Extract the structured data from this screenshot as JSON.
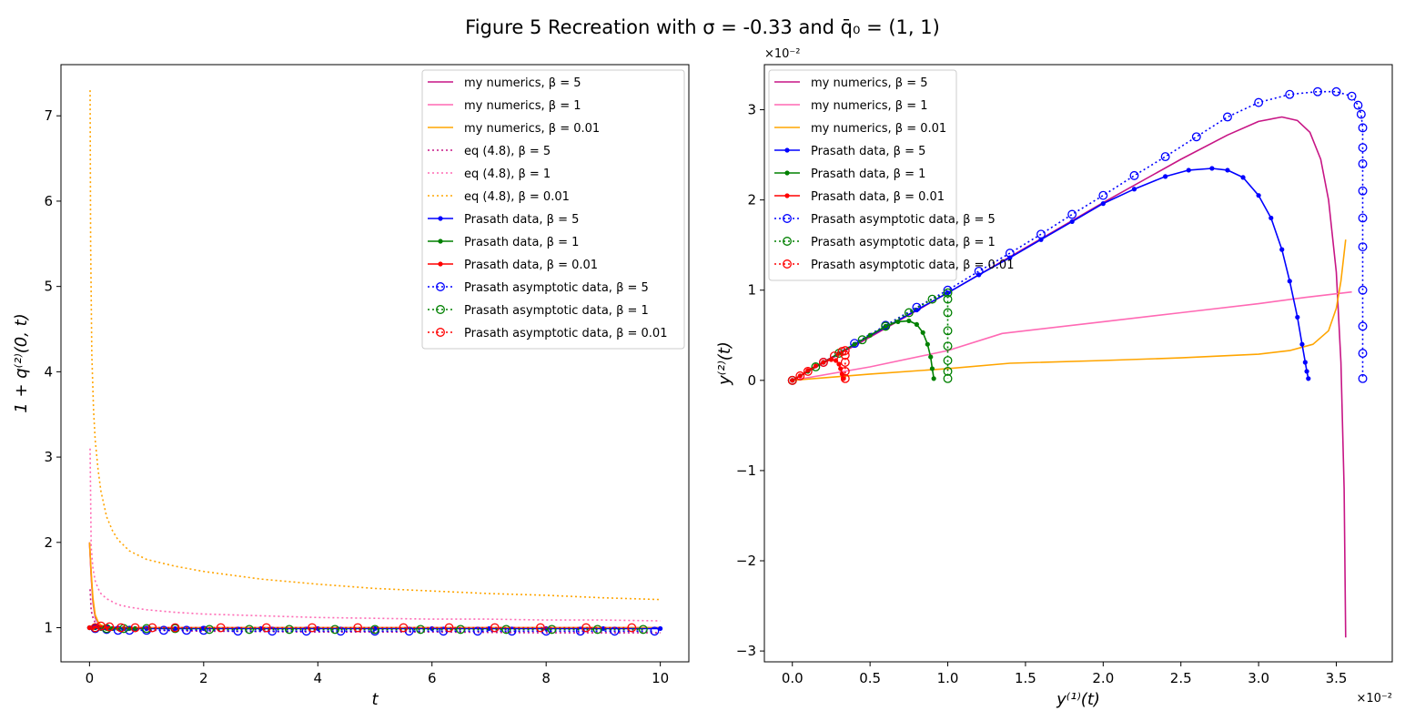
{
  "figure": {
    "title": "Figure 5 Recreation with σ = -0.33 and q̄₀ = (1, 1)"
  },
  "chart_data": [
    {
      "type": "line",
      "xlabel": "t",
      "ylabel": "1 + q⁽²⁾(0, t)",
      "xlim": [
        -0.5,
        10.5
      ],
      "ylim": [
        0.6,
        7.6
      ],
      "xticks": [
        0,
        2,
        4,
        6,
        8,
        10
      ],
      "xtick_labels": [
        "0",
        "2",
        "4",
        "6",
        "8",
        "10"
      ],
      "yticks": [
        1,
        2,
        3,
        4,
        5,
        6,
        7
      ],
      "ytick_labels": [
        "1",
        "2",
        "3",
        "4",
        "5",
        "6",
        "7"
      ],
      "grid": false,
      "legend_position": "top-right",
      "series": [
        {
          "name": "my numerics, β = 5",
          "color": "#c71585",
          "style": "solid",
          "x": [
            0,
            0.03,
            0.06,
            0.1,
            0.15,
            0.2,
            0.3,
            0.5,
            1,
            2,
            4,
            6,
            8,
            10
          ],
          "y": [
            2.0,
            1.6,
            1.3,
            1.12,
            1.05,
            1.02,
            1.0,
            1.0,
            1.0,
            1.0,
            1.0,
            1.0,
            1.0,
            1.0
          ]
        },
        {
          "name": "my numerics, β = 1",
          "color": "#ff69b4",
          "style": "solid",
          "x": [
            0,
            0.03,
            0.06,
            0.1,
            0.15,
            0.2,
            0.3,
            0.5,
            1,
            2,
            4,
            6,
            8,
            10
          ],
          "y": [
            2.0,
            1.62,
            1.32,
            1.14,
            1.06,
            1.03,
            1.01,
            1.0,
            1.0,
            1.0,
            1.0,
            1.0,
            1.0,
            1.0
          ]
        },
        {
          "name": "my numerics, β = 0.01",
          "color": "#ffa500",
          "style": "solid",
          "x": [
            0,
            0.03,
            0.06,
            0.1,
            0.15,
            0.2,
            0.3,
            0.5,
            1,
            2,
            4,
            6,
            8,
            10
          ],
          "y": [
            2.0,
            1.65,
            1.35,
            1.15,
            1.07,
            1.03,
            1.01,
            1.0,
            1.0,
            1.0,
            1.0,
            1.0,
            1.0,
            1.0
          ]
        },
        {
          "name": "eq (4.8), β = 5",
          "color": "#c71585",
          "style": "dotted",
          "x": [
            0.01,
            0.03,
            0.06,
            0.1,
            0.2,
            0.4,
            0.7,
            1,
            2,
            4,
            6,
            8,
            10
          ],
          "y": [
            1.45,
            1.2,
            1.12,
            1.06,
            1.0,
            0.98,
            0.97,
            0.97,
            0.96,
            0.95,
            0.95,
            0.94,
            0.94
          ]
        },
        {
          "name": "eq (4.8), β = 1",
          "color": "#ff69b4",
          "style": "dotted",
          "x": [
            0.01,
            0.03,
            0.06,
            0.1,
            0.15,
            0.2,
            0.3,
            0.5,
            0.7,
            1,
            1.5,
            2,
            3,
            4,
            5,
            6,
            7,
            8,
            9,
            10
          ],
          "y": [
            3.1,
            1.95,
            1.7,
            1.55,
            1.46,
            1.4,
            1.34,
            1.27,
            1.24,
            1.21,
            1.18,
            1.16,
            1.14,
            1.12,
            1.11,
            1.1,
            1.1,
            1.09,
            1.09,
            1.08
          ]
        },
        {
          "name": "eq (4.8), β = 0.01",
          "color": "#ffa500",
          "style": "dotted",
          "x": [
            0.01,
            0.02,
            0.04,
            0.07,
            0.1,
            0.15,
            0.2,
            0.3,
            0.4,
            0.5,
            0.7,
            1,
            1.5,
            2,
            3,
            4,
            5,
            6,
            7,
            8,
            9,
            10
          ],
          "y": [
            7.3,
            5.5,
            4.2,
            3.55,
            3.2,
            2.85,
            2.6,
            2.3,
            2.14,
            2.03,
            1.9,
            1.8,
            1.72,
            1.66,
            1.57,
            1.51,
            1.46,
            1.43,
            1.4,
            1.38,
            1.35,
            1.33
          ]
        },
        {
          "name": "Prasath data, β = 5",
          "color": "#0000ff",
          "style": "solid-dot",
          "x": [
            0,
            0.2,
            0.4,
            0.6,
            0.8,
            1,
            1.5,
            2,
            3,
            4,
            5,
            6,
            7,
            8,
            9,
            10
          ],
          "y": [
            1.0,
            0.99,
            0.99,
            0.99,
            0.99,
            0.99,
            0.99,
            0.99,
            0.99,
            0.99,
            0.99,
            0.99,
            0.99,
            0.99,
            0.99,
            0.99
          ]
        },
        {
          "name": "Prasath data, β = 1",
          "color": "#008000",
          "style": "solid-dot",
          "x": [
            0,
            0.1,
            0.2,
            0.3,
            0.4,
            0.5,
            0.6,
            0.7,
            0.8
          ],
          "y": [
            1.0,
            1.0,
            0.99,
            0.99,
            0.99,
            0.99,
            0.99,
            0.99,
            0.99
          ]
        },
        {
          "name": "Prasath data, β = 0.01",
          "color": "#ff0000",
          "style": "solid-dot",
          "x": [
            0,
            0.05,
            0.1,
            0.15,
            0.2,
            0.25,
            0.3
          ],
          "y": [
            1.0,
            1.0,
            1.01,
            1.01,
            1.0,
            1.0,
            1.0
          ]
        },
        {
          "name": "Prasath asymptotic data, β = 5",
          "color": "#0000ff",
          "style": "dotted-circle",
          "x": [
            0.1,
            0.3,
            0.5,
            0.7,
            1.0,
            1.3,
            1.7,
            2.0,
            2.6,
            3.2,
            3.8,
            4.4,
            5.0,
            5.6,
            6.2,
            6.8,
            7.4,
            8.0,
            8.6,
            9.2,
            9.9
          ],
          "y": [
            0.99,
            0.98,
            0.97,
            0.97,
            0.97,
            0.97,
            0.97,
            0.97,
            0.96,
            0.96,
            0.96,
            0.96,
            0.96,
            0.96,
            0.96,
            0.96,
            0.96,
            0.96,
            0.96,
            0.96,
            0.96
          ]
        },
        {
          "name": "Prasath asymptotic data, β = 1",
          "color": "#008000",
          "style": "dotted-circle",
          "x": [
            0.1,
            0.3,
            0.6,
            1.0,
            1.5,
            2.1,
            2.8,
            3.5,
            4.3,
            5.0,
            5.8,
            6.5,
            7.3,
            8.1,
            8.9,
            9.7
          ],
          "y": [
            1.0,
            0.99,
            0.99,
            0.99,
            0.99,
            0.98,
            0.98,
            0.98,
            0.98,
            0.98,
            0.98,
            0.98,
            0.98,
            0.98,
            0.98,
            0.98
          ]
        },
        {
          "name": "Prasath asymptotic data, β = 0.01",
          "color": "#ff0000",
          "style": "dotted-circle",
          "x": [
            0.1,
            0.2,
            0.35,
            0.55,
            0.8,
            1.1,
            1.5,
            2.3,
            3.1,
            3.9,
            4.7,
            5.5,
            6.3,
            7.1,
            7.9,
            8.7,
            9.5
          ],
          "y": [
            1.0,
            1.02,
            1.01,
            1.0,
            1.0,
            1.0,
            1.0,
            1.0,
            1.0,
            1.0,
            1.0,
            1.0,
            1.0,
            1.0,
            1.0,
            1.0,
            1.0
          ]
        }
      ]
    },
    {
      "type": "line",
      "xlabel": "y⁽¹⁾(t)",
      "ylabel": "y⁽²⁾(t)",
      "x_offset_label": "×10⁻²",
      "y_offset_label": "×10⁻²",
      "xlim": [
        -0.18,
        3.86
      ],
      "ylim": [
        -3.12,
        3.5
      ],
      "xticks": [
        0,
        0.5,
        1,
        1.5,
        2,
        2.5,
        3,
        3.5
      ],
      "xtick_labels": [
        "0.0",
        "0.5",
        "1.0",
        "1.5",
        "2.0",
        "2.5",
        "3.0",
        "3.5"
      ],
      "yticks": [
        -3,
        -2,
        -1,
        0,
        1,
        2,
        3
      ],
      "ytick_labels": [
        "−3",
        "−2",
        "−1",
        "0",
        "1",
        "2",
        "3"
      ],
      "grid": false,
      "legend_position": "top-left",
      "series": [
        {
          "name": "my numerics, β = 5",
          "color": "#c71585",
          "style": "solid",
          "x": [
            0,
            0.5,
            1.0,
            1.5,
            2.0,
            2.5,
            2.8,
            3.0,
            3.15,
            3.25,
            3.33,
            3.4,
            3.45,
            3.5,
            3.53,
            3.55,
            3.56
          ],
          "y": [
            0,
            0.48,
            0.97,
            1.47,
            1.97,
            2.45,
            2.72,
            2.87,
            2.92,
            2.88,
            2.75,
            2.45,
            2.0,
            1.2,
            0.2,
            -1.2,
            -2.85
          ]
        },
        {
          "name": "my numerics, β = 1",
          "color": "#ff69b4",
          "style": "solid",
          "x": [
            0,
            0.5,
            1.0,
            1.35,
            2.0,
            2.5,
            3.0,
            3.3,
            3.6
          ],
          "y": [
            0,
            0.15,
            0.33,
            0.52,
            0.65,
            0.75,
            0.85,
            0.92,
            0.98
          ]
        },
        {
          "name": "my numerics, β = 0.01",
          "color": "#ffa500",
          "style": "solid",
          "x": [
            0,
            0.5,
            1.0,
            1.4,
            2.0,
            2.5,
            3.0,
            3.2,
            3.35,
            3.45,
            3.5,
            3.53,
            3.56
          ],
          "y": [
            0,
            0.07,
            0.13,
            0.19,
            0.22,
            0.25,
            0.29,
            0.33,
            0.4,
            0.55,
            0.8,
            1.1,
            1.56
          ]
        },
        {
          "name": "Prasath data, β = 5",
          "color": "#0000ff",
          "style": "solid-dot",
          "x": [
            0,
            0.2,
            0.4,
            0.6,
            0.8,
            1.0,
            1.2,
            1.4,
            1.6,
            1.8,
            2.0,
            2.2,
            2.4,
            2.55,
            2.7,
            2.8,
            2.9,
            3.0,
            3.08,
            3.15,
            3.2,
            3.25,
            3.28,
            3.3,
            3.31,
            3.32
          ],
          "y": [
            0,
            0.2,
            0.4,
            0.59,
            0.78,
            0.97,
            1.17,
            1.36,
            1.56,
            1.76,
            1.96,
            2.12,
            2.26,
            2.33,
            2.35,
            2.33,
            2.25,
            2.05,
            1.8,
            1.45,
            1.1,
            0.7,
            0.4,
            0.2,
            0.1,
            0.02
          ]
        },
        {
          "name": "Prasath data, β = 1",
          "color": "#008000",
          "style": "solid-dot",
          "x": [
            0,
            0.1,
            0.2,
            0.3,
            0.4,
            0.5,
            0.6,
            0.68,
            0.75,
            0.8,
            0.84,
            0.87,
            0.89,
            0.9,
            0.91
          ],
          "y": [
            0,
            0.1,
            0.2,
            0.3,
            0.4,
            0.5,
            0.6,
            0.65,
            0.66,
            0.62,
            0.53,
            0.4,
            0.26,
            0.13,
            0.02
          ]
        },
        {
          "name": "Prasath data, β = 0.01",
          "color": "#ff0000",
          "style": "solid-dot",
          "x": [
            0,
            0.05,
            0.1,
            0.15,
            0.2,
            0.25,
            0.28,
            0.3,
            0.31,
            0.32,
            0.33
          ],
          "y": [
            0,
            0.05,
            0.11,
            0.16,
            0.2,
            0.23,
            0.22,
            0.18,
            0.13,
            0.07,
            0.02
          ]
        },
        {
          "name": "Prasath asymptotic data, β = 5",
          "color": "#0000ff",
          "style": "dotted-circle",
          "x": [
            0,
            0.2,
            0.4,
            0.6,
            0.8,
            1.0,
            1.2,
            1.4,
            1.6,
            1.8,
            2.0,
            2.2,
            2.4,
            2.6,
            2.8,
            3.0,
            3.2,
            3.38,
            3.5,
            3.6,
            3.64,
            3.66,
            3.67,
            3.67,
            3.67,
            3.67,
            3.67,
            3.67,
            3.67,
            3.67,
            3.67,
            3.67
          ],
          "y": [
            0,
            0.2,
            0.41,
            0.61,
            0.81,
            1.0,
            1.21,
            1.41,
            1.62,
            1.84,
            2.05,
            2.27,
            2.48,
            2.7,
            2.92,
            3.08,
            3.17,
            3.2,
            3.2,
            3.15,
            3.05,
            2.95,
            2.8,
            2.58,
            2.4,
            2.1,
            1.8,
            1.48,
            1.0,
            0.6,
            0.3,
            0.02
          ]
        },
        {
          "name": "Prasath asymptotic data, β = 1",
          "color": "#008000",
          "style": "dotted-circle",
          "x": [
            0,
            0.15,
            0.3,
            0.45,
            0.6,
            0.75,
            0.9,
            1.0,
            1.0,
            1.0,
            1.0,
            1.0,
            1.0,
            1.0,
            1.0
          ],
          "y": [
            0,
            0.15,
            0.3,
            0.45,
            0.6,
            0.75,
            0.9,
            0.97,
            0.9,
            0.75,
            0.55,
            0.38,
            0.22,
            0.1,
            0.02
          ]
        },
        {
          "name": "Prasath asymptotic data, β = 0.01",
          "color": "#ff0000",
          "style": "dotted-circle",
          "x": [
            0,
            0.05,
            0.1,
            0.2,
            0.27,
            0.32,
            0.34,
            0.34,
            0.34,
            0.34,
            0.34
          ],
          "y": [
            0,
            0.05,
            0.1,
            0.2,
            0.27,
            0.32,
            0.33,
            0.28,
            0.2,
            0.1,
            0.02
          ]
        }
      ]
    }
  ]
}
